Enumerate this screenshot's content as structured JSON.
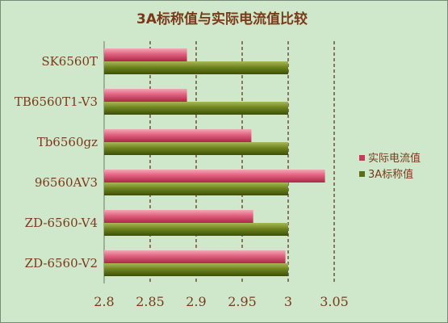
{
  "chart_data": {
    "type": "bar",
    "orientation": "horizontal",
    "title": "3A标称值与实际电流值比较",
    "categories": [
      "SK6560T",
      "TB6560T1-V3",
      "Tb6560gz",
      "96560AV3",
      "ZD-6560-V4",
      "ZD-6560-V2"
    ],
    "series": [
      {
        "name": "实际电流值",
        "values": [
          2.89,
          2.89,
          2.96,
          3.04,
          2.962,
          2.997
        ],
        "color": "#c83a5a"
      },
      {
        "name": "3A标称值",
        "values": [
          3.0,
          3.0,
          3.0,
          3.0,
          3.0,
          3.0
        ],
        "color": "#5a6e18"
      }
    ],
    "xlim": [
      2.8,
      3.05
    ],
    "ticks": [
      "2.8",
      "2.85",
      "2.9",
      "2.95",
      "3",
      "3.05"
    ],
    "grid": true,
    "legend": "right",
    "colors": {
      "background": "#cfe8cc",
      "gridline": "#5a2a10",
      "text": "#7a3a1a"
    }
  }
}
